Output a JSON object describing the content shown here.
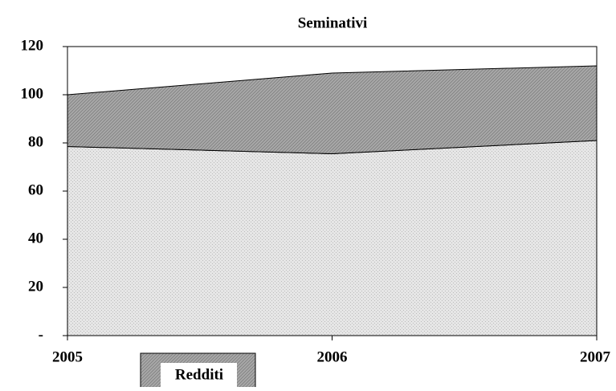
{
  "chart_data": {
    "type": "stacked_area",
    "title": "Seminativi",
    "x": [
      2005,
      2006,
      2007
    ],
    "series": [
      {
        "color": "#e6e6e6",
        "values": [
          78.5,
          75.5,
          81
        ]
      },
      {
        "name": "Redditi",
        "color": "#a8a8a8",
        "values": [
          21.5,
          33.5,
          31
        ]
      }
    ],
    "xlim": [
      2005,
      2007
    ],
    "xticks": [
      2005,
      2006,
      2007
    ],
    "ylim": [
      0,
      120
    ],
    "yticks": [
      {
        "value": 0,
        "label": "-"
      },
      20,
      40,
      60,
      80,
      100,
      120
    ]
  }
}
